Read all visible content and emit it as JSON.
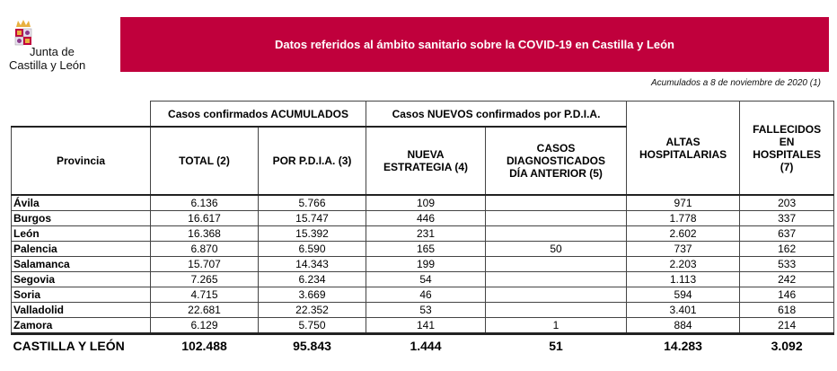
{
  "header": {
    "logo_text_line1": "Junta de",
    "logo_text_line2": "Castilla y León",
    "title": "Datos referidos al ámbito sanitario sobre la COVID-19 en Castilla y León",
    "date_note": "Acumulados a 8 de noviembre de 2020 (1)",
    "brand_color": "#c0003c"
  },
  "table": {
    "group_headers": {
      "acumulados": "Casos confirmados ACUMULADOS",
      "nuevos": "Casos NUEVOS confirmados por P.D.I.A."
    },
    "columns": [
      "Provincia",
      "TOTAL (2)",
      "POR P.D.I.A. (3)",
      "NUEVA ESTRATEGIA (4)",
      "CASOS DIAGNOSTICADOS DÍA ANTERIOR (5)",
      "ALTAS HOSPITALARIAS",
      "FALLECIDOS EN HOSPITALES (7)"
    ],
    "rows": [
      [
        "Ávila",
        "6.136",
        "5.766",
        "109",
        "",
        "971",
        "203"
      ],
      [
        "Burgos",
        "16.617",
        "15.747",
        "446",
        "",
        "1.778",
        "337"
      ],
      [
        "León",
        "16.368",
        "15.392",
        "231",
        "",
        "2.602",
        "637"
      ],
      [
        "Palencia",
        "6.870",
        "6.590",
        "165",
        "50",
        "737",
        "162"
      ],
      [
        "Salamanca",
        "15.707",
        "14.343",
        "199",
        "",
        "2.203",
        "533"
      ],
      [
        "Segovia",
        "7.265",
        "6.234",
        "54",
        "",
        "1.113",
        "242"
      ],
      [
        "Soria",
        "4.715",
        "3.669",
        "46",
        "",
        "594",
        "146"
      ],
      [
        "Valladolid",
        "22.681",
        "22.352",
        "53",
        "",
        "3.401",
        "618"
      ],
      [
        "Zamora",
        "6.129",
        "5.750",
        "141",
        "1",
        "884",
        "214"
      ]
    ],
    "total": [
      "CASTILLA Y LEÓN",
      "102.488",
      "95.843",
      "1.444",
      "51",
      "14.283",
      "3.092"
    ]
  }
}
